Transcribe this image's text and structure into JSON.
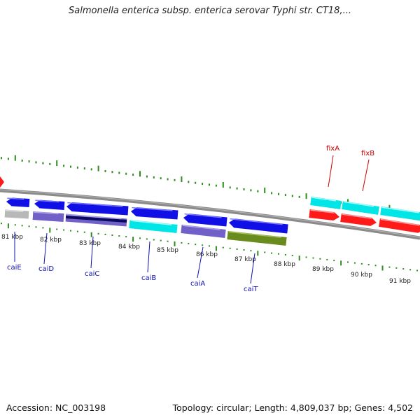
{
  "title": "Salmonella enterica subsp. enterica serovar Typhi str. CT18,...",
  "footer": {
    "accession": "Accession: NC_003198",
    "topology": "Topology: circular; Length: 4,809,037 bp; Genes: 4,502"
  },
  "colors": {
    "backbone": "#8c8c8c",
    "tick": "#2e8b1e",
    "tick_label": "#222222",
    "label_blue": "#1010b0",
    "label_red": "#cc0000"
  },
  "ticks": [
    {
      "label": "81 kbp"
    },
    {
      "label": "82 kbp"
    },
    {
      "label": "83 kbp"
    },
    {
      "label": "84 kbp"
    },
    {
      "label": "85 kbp"
    },
    {
      "label": "86 kbp"
    },
    {
      "label": "87 kbp"
    },
    {
      "label": "88 kbp"
    },
    {
      "label": "89 kbp"
    },
    {
      "label": "90 kbp"
    },
    {
      "label": "91 kbp"
    }
  ],
  "gene_labels": [
    {
      "name": "caiE",
      "color": "blue"
    },
    {
      "name": "caiD",
      "color": "blue"
    },
    {
      "name": "caiC",
      "color": "blue"
    },
    {
      "name": "caiB",
      "color": "blue"
    },
    {
      "name": "caiA",
      "color": "blue"
    },
    {
      "name": "caiT",
      "color": "blue"
    },
    {
      "name": "fixA",
      "color": "red"
    },
    {
      "name": "fixB",
      "color": "red"
    }
  ]
}
